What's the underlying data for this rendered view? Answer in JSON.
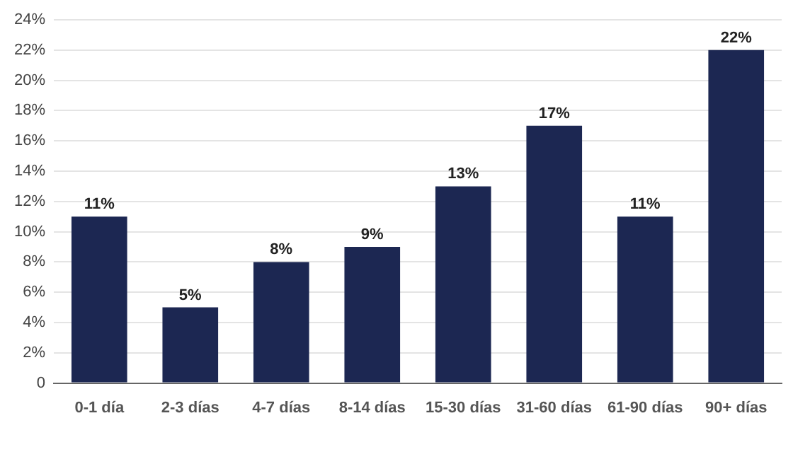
{
  "chart_data": {
    "type": "bar",
    "categories": [
      "0-1 día",
      "2-3 días",
      "4-7 días",
      "8-14 días",
      "15-30 días",
      "31-60 días",
      "61-90 días",
      "90+ días"
    ],
    "values": [
      11,
      5,
      8,
      9,
      13,
      17,
      11,
      22
    ],
    "color": "#1c2752",
    "value_labels": [
      "11%",
      "5%",
      "8%",
      "9%",
      "13%",
      "17%",
      "11%",
      "22%"
    ],
    "ylim": [
      0,
      24
    ],
    "yticks": [
      0,
      {
        "value": 2,
        "label": "2%"
      },
      {
        "value": 4,
        "label": "4%"
      },
      {
        "value": 6,
        "label": "6%"
      },
      {
        "value": 8,
        "label": "8%"
      },
      {
        "value": 10,
        "label": "10%"
      },
      {
        "value": 12,
        "label": "12%"
      },
      {
        "value": 14,
        "label": "14%"
      },
      {
        "value": 16,
        "label": "16%"
      },
      {
        "value": 18,
        "label": "18%"
      },
      {
        "value": 20,
        "label": "20%"
      },
      {
        "value": 22,
        "label": "22%"
      },
      {
        "value": 24,
        "label": "24%"
      }
    ],
    "grid": "y",
    "legend": false
  }
}
